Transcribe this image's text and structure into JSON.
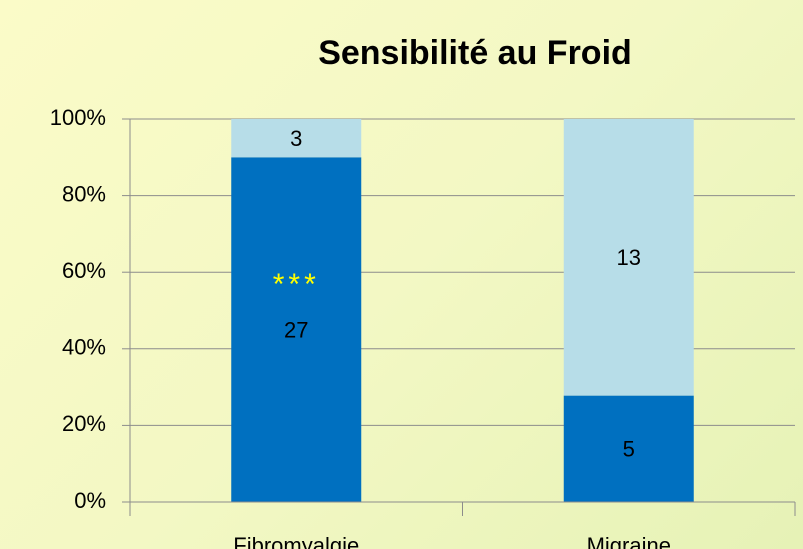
{
  "chart_data": {
    "type": "bar",
    "stacking": "percent",
    "title": "Sensibilité au Froid",
    "categories": [
      "Fibromyalgie",
      "Migraine"
    ],
    "series": [
      {
        "color": "#0070c0",
        "values": [
          27,
          5
        ]
      },
      {
        "color": "#b7dde8",
        "values": [
          3,
          13
        ]
      }
    ],
    "ylim": [
      0,
      100
    ],
    "yticks": [
      {
        "value": 0,
        "label": "0%"
      },
      {
        "value": 20,
        "label": "20%"
      },
      {
        "value": 40,
        "label": "40%"
      },
      {
        "value": 60,
        "label": "60%"
      },
      {
        "value": 80,
        "label": "80%"
      },
      {
        "value": 100,
        "label": "100%"
      }
    ],
    "grid": true,
    "annotations": [
      {
        "text": "***",
        "category": 0,
        "color": "#ffff00"
      }
    ]
  }
}
